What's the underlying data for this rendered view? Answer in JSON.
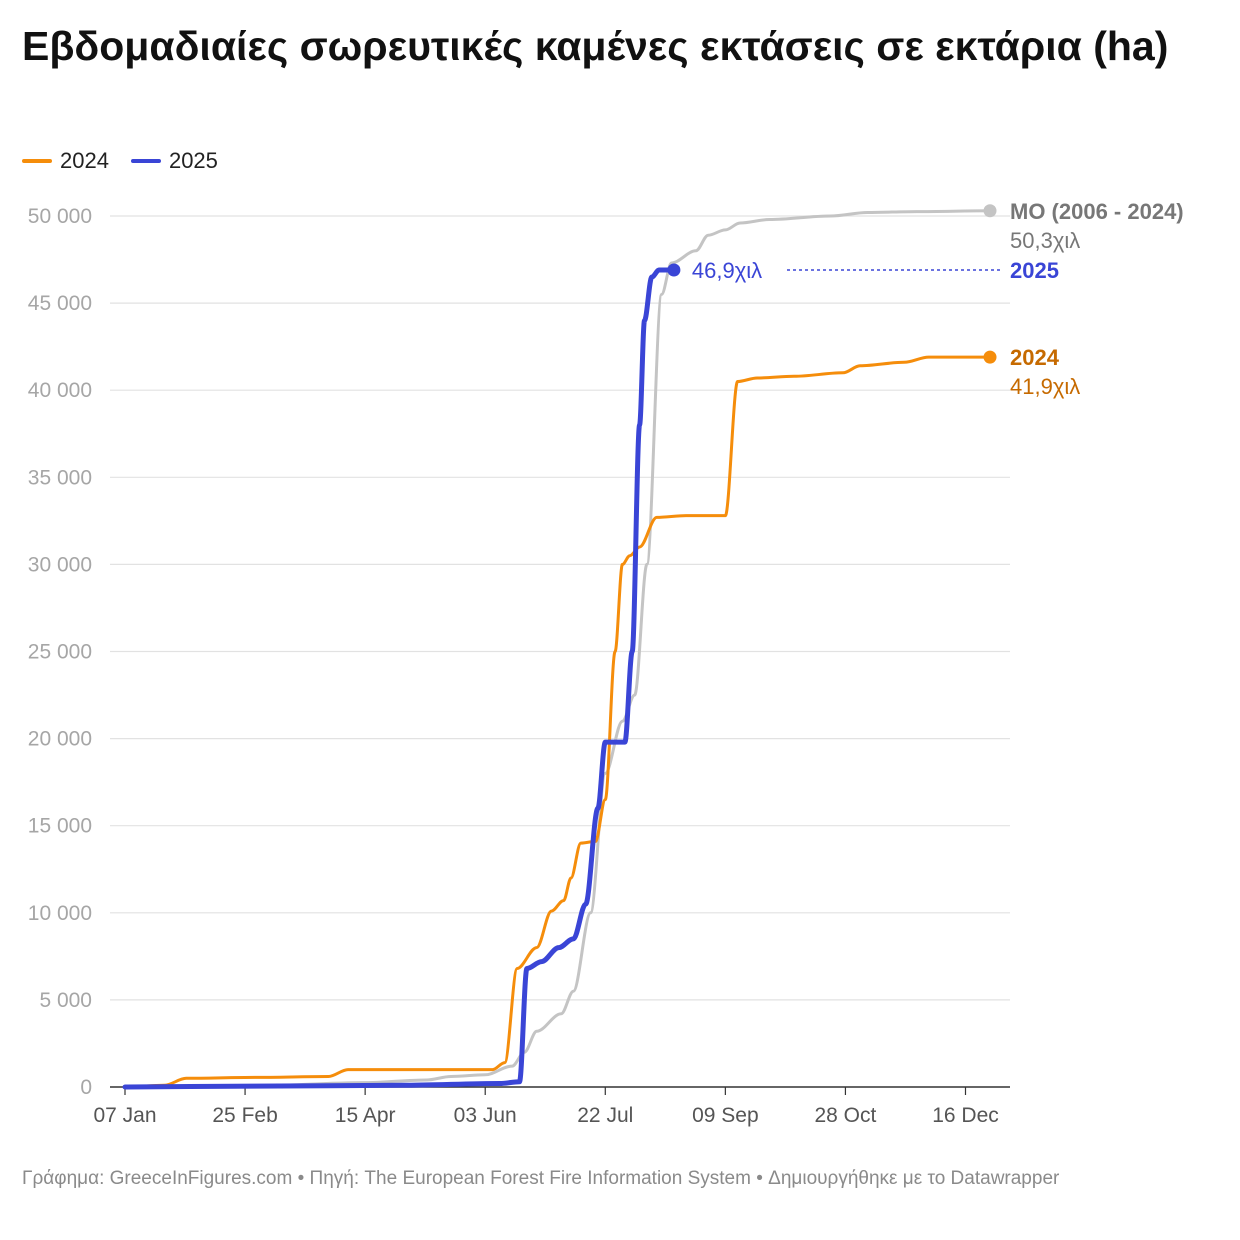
{
  "title": "Εβδομαδιαίες σωρευτικές καμένες εκτάσεις σε εκτάρια (ha)",
  "legend": [
    {
      "label": "2024",
      "color": "#f58d0b"
    },
    {
      "label": "2025",
      "color": "#3a45d6"
    }
  ],
  "footer": "Γράφημα: GreeceInFigures.com • Πηγή: The European Forest Fire Information System • Δημιουργήθηκε με το Datawrapper",
  "chart_data": {
    "type": "line",
    "title": "Εβδομαδιαίες σωρευτικές καμένες εκτάσεις σε εκτάρια (ha)",
    "xlabel": "",
    "ylabel": "",
    "ylim": [
      0,
      50000
    ],
    "xlim_day_of_year": [
      7,
      360
    ],
    "y_ticks": [
      0,
      5000,
      10000,
      15000,
      20000,
      25000,
      30000,
      35000,
      40000,
      45000,
      50000
    ],
    "y_tick_labels": [
      "0",
      "5 000",
      "10 000",
      "15 000",
      "20 000",
      "25 000",
      "30 000",
      "35 000",
      "40 000",
      "45 000",
      "50 000"
    ],
    "x_ticks": [
      {
        "day": 7,
        "label": "07 Jan"
      },
      {
        "day": 56,
        "label": "25 Feb"
      },
      {
        "day": 105,
        "label": "15 Apr"
      },
      {
        "day": 154,
        "label": "03 Jun"
      },
      {
        "day": 203,
        "label": "22 Jul"
      },
      {
        "day": 252,
        "label": "09 Sep"
      },
      {
        "day": 301,
        "label": "28 Oct"
      },
      {
        "day": 350,
        "label": "16 Dec"
      }
    ],
    "grid": true,
    "series": [
      {
        "name": "ΜΟ (2006 - 2024)",
        "color": "#c4c4c4",
        "end_label": "ΜΟ (2006 - 2024)",
        "end_value": "50,3χιλ",
        "points": [
          [
            7,
            0
          ],
          [
            56,
            50
          ],
          [
            105,
            250
          ],
          [
            130,
            400
          ],
          [
            140,
            600
          ],
          [
            154,
            700
          ],
          [
            165,
            1200
          ],
          [
            170,
            2000
          ],
          [
            175,
            3200
          ],
          [
            185,
            4200
          ],
          [
            190,
            5500
          ],
          [
            197,
            10000
          ],
          [
            203,
            18000
          ],
          [
            210,
            21000
          ],
          [
            215,
            22500
          ],
          [
            220,
            30000
          ],
          [
            226,
            45500
          ],
          [
            230,
            47300
          ],
          [
            240,
            48000
          ],
          [
            245,
            48900
          ],
          [
            252,
            49200
          ],
          [
            258,
            49600
          ],
          [
            270,
            49800
          ],
          [
            295,
            50000
          ],
          [
            310,
            50200
          ],
          [
            330,
            50250
          ],
          [
            360,
            50300
          ]
        ]
      },
      {
        "name": "2024",
        "color": "#f58d0b",
        "end_label": "2024",
        "end_value": "41,9χιλ",
        "points": [
          [
            7,
            0
          ],
          [
            23,
            100
          ],
          [
            32,
            500
          ],
          [
            60,
            550
          ],
          [
            90,
            600
          ],
          [
            98,
            1000
          ],
          [
            157,
            1000
          ],
          [
            162,
            1400
          ],
          [
            167,
            6800
          ],
          [
            175,
            8000
          ],
          [
            181,
            10100
          ],
          [
            186,
            10700
          ],
          [
            189,
            12000
          ],
          [
            193,
            14000
          ],
          [
            199,
            14100
          ],
          [
            203,
            16500
          ],
          [
            207,
            25000
          ],
          [
            210,
            30000
          ],
          [
            213,
            30500
          ],
          [
            217,
            31000
          ],
          [
            224,
            32700
          ],
          [
            236,
            32800
          ],
          [
            252,
            32800
          ],
          [
            257,
            40500
          ],
          [
            265,
            40700
          ],
          [
            280,
            40800
          ],
          [
            300,
            41000
          ],
          [
            307,
            41400
          ],
          [
            325,
            41600
          ],
          [
            335,
            41900
          ],
          [
            360,
            41900
          ]
        ]
      },
      {
        "name": "2025",
        "color": "#3a45d6",
        "end_label": "2025",
        "end_value": "46,9χιλ",
        "points": [
          [
            7,
            0
          ],
          [
            60,
            50
          ],
          [
            120,
            100
          ],
          [
            160,
            200
          ],
          [
            168,
            300
          ],
          [
            171,
            6800
          ],
          [
            177,
            7200
          ],
          [
            184,
            8000
          ],
          [
            190,
            8500
          ],
          [
            195,
            10500
          ],
          [
            200,
            16000
          ],
          [
            203,
            19800
          ],
          [
            211,
            19800
          ],
          [
            214,
            25000
          ],
          [
            217,
            38000
          ],
          [
            219,
            44000
          ],
          [
            222,
            46500
          ],
          [
            225,
            46900
          ],
          [
            231,
            46900
          ]
        ]
      }
    ]
  }
}
